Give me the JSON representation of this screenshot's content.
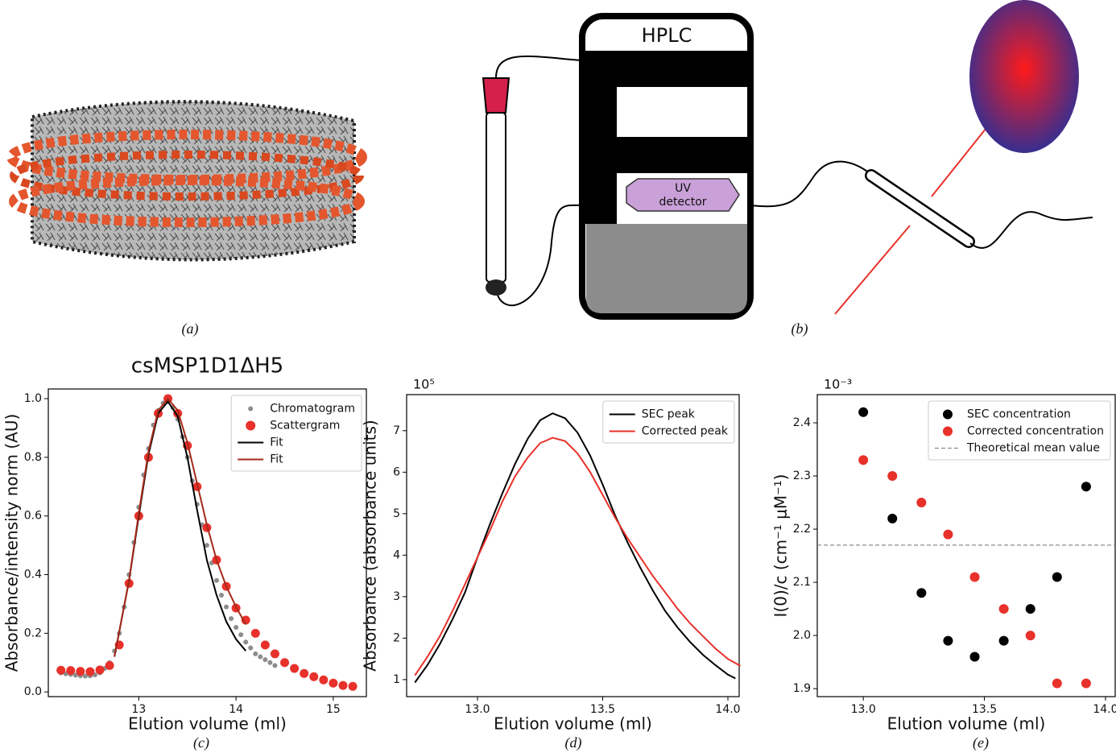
{
  "captions": [
    "(a)",
    "(b)",
    "(c)",
    "(d)",
    "(e)"
  ],
  "diagram": {
    "hplc": "HPLC",
    "detector": [
      "UV",
      "detector"
    ]
  },
  "chart_data": [
    {
      "type": "line",
      "title": "csMSP1D1ΔH5",
      "xlabel": "Elution volume (ml)",
      "ylabel": "Absorbance/intensity norm (AU)",
      "xlim": [
        12.07,
        15.34
      ],
      "ylim": [
        -0.016,
        1.033
      ],
      "xticks": [
        13,
        14,
        15
      ],
      "yticks": [
        {
          "value": 0,
          "label": "0.0"
        },
        0.2,
        0.4,
        0.6,
        0.8,
        {
          "value": 1,
          "label": "1.0"
        }
      ],
      "legend": "upper right",
      "series": [
        {
          "name": "Chromatogram",
          "color": "#8c8c8c",
          "style": "dots",
          "x": [
            12.2,
            12.25,
            12.3,
            12.35,
            12.4,
            12.45,
            12.5,
            12.55,
            12.6,
            12.65,
            12.7,
            12.75,
            12.8,
            12.85,
            12.9,
            12.95,
            13.0,
            13.05,
            13.1,
            13.15,
            13.2,
            13.25,
            13.3,
            13.35,
            13.4,
            13.45,
            13.5,
            13.55,
            13.6,
            13.65,
            13.7,
            13.75,
            13.8,
            13.85,
            13.9,
            13.95,
            14.0,
            14.05,
            14.1,
            14.15,
            14.2,
            14.25,
            14.3,
            14.35,
            14.4
          ],
          "values": [
            0.065,
            0.062,
            0.06,
            0.057,
            0.055,
            0.054,
            0.055,
            0.058,
            0.065,
            0.08,
            0.1,
            0.14,
            0.2,
            0.29,
            0.4,
            0.51,
            0.63,
            0.74,
            0.83,
            0.91,
            0.96,
            0.985,
            0.99,
            0.97,
            0.93,
            0.87,
            0.8,
            0.72,
            0.64,
            0.57,
            0.5,
            0.44,
            0.38,
            0.33,
            0.29,
            0.25,
            0.22,
            0.195,
            0.17,
            0.15,
            0.13,
            0.12,
            0.11,
            0.1,
            0.09
          ]
        },
        {
          "name": "Scattergram",
          "color": "#e8312a",
          "style": "points",
          "x": [
            12.2,
            12.3,
            12.4,
            12.5,
            12.6,
            12.7,
            12.8,
            12.9,
            13.0,
            13.1,
            13.2,
            13.3,
            13.4,
            13.5,
            13.6,
            13.7,
            13.8,
            13.9,
            14.0,
            14.1,
            14.2,
            14.3,
            14.4,
            14.5,
            14.6,
            14.7,
            14.8,
            14.9,
            15.0,
            15.1,
            15.2
          ],
          "values": [
            0.074,
            0.073,
            0.07,
            0.069,
            0.075,
            0.09,
            0.16,
            0.37,
            0.6,
            0.8,
            0.95,
            1.0,
            0.95,
            0.84,
            0.7,
            0.56,
            0.45,
            0.36,
            0.286,
            0.245,
            0.2,
            0.16,
            0.13,
            0.1,
            0.08,
            0.063,
            0.052,
            0.041,
            0.03,
            0.022,
            0.019
          ]
        },
        {
          "name": "Fit",
          "color": "#000000",
          "style": "line",
          "x": [
            12.75,
            12.9,
            13.0,
            13.1,
            13.2,
            13.3,
            13.4,
            13.5,
            13.6,
            13.7,
            13.8,
            13.9,
            14.0,
            14.1
          ],
          "values": [
            0.12,
            0.38,
            0.6,
            0.81,
            0.95,
            0.99,
            0.94,
            0.8,
            0.62,
            0.45,
            0.33,
            0.24,
            0.18,
            0.14
          ]
        },
        {
          "name": "Fit",
          "color": "#a52a1a",
          "style": "line",
          "x": [
            12.75,
            12.9,
            13.0,
            13.1,
            13.2,
            13.3,
            13.4,
            13.5,
            13.6,
            13.7,
            13.8,
            13.9,
            14.0,
            14.1
          ],
          "values": [
            0.12,
            0.38,
            0.61,
            0.82,
            0.96,
            1.0,
            0.96,
            0.85,
            0.71,
            0.57,
            0.45,
            0.36,
            0.29,
            0.23
          ]
        }
      ]
    },
    {
      "type": "line",
      "offset_label": "10⁵",
      "xlabel": "Elution volume (ml)",
      "ylabel": "Absorbance (absorbance units)",
      "xlim": [
        12.717,
        14.045
      ],
      "ylim": [
        0.59,
        7.87
      ],
      "xticks": [
        {
          "value": 13,
          "label": "13.0"
        },
        13.5,
        {
          "value": 14,
          "label": "14.0"
        }
      ],
      "yticks": [
        1,
        2,
        3,
        4,
        5,
        6,
        7
      ],
      "legend": "upper right",
      "series": [
        {
          "name": "SEC peak",
          "color": "#000000",
          "style": "line",
          "x": [
            12.75,
            12.8,
            12.85,
            12.9,
            12.95,
            13.0,
            13.05,
            13.1,
            13.15,
            13.2,
            13.25,
            13.3,
            13.35,
            13.4,
            13.45,
            13.5,
            13.55,
            13.6,
            13.65,
            13.7,
            13.75,
            13.8,
            13.85,
            13.9,
            13.95,
            14.0,
            14.03
          ],
          "values": [
            0.93,
            1.35,
            1.86,
            2.45,
            3.1,
            3.95,
            4.75,
            5.5,
            6.2,
            6.8,
            7.25,
            7.42,
            7.3,
            6.95,
            6.4,
            5.7,
            4.95,
            4.3,
            3.7,
            3.15,
            2.65,
            2.25,
            1.9,
            1.6,
            1.35,
            1.12,
            1.03
          ]
        },
        {
          "name": "Corrected peak",
          "color": "#e8312a",
          "style": "line",
          "x": [
            12.75,
            12.8,
            12.85,
            12.9,
            12.95,
            13.0,
            13.05,
            13.1,
            13.15,
            13.2,
            13.25,
            13.3,
            13.35,
            13.4,
            13.45,
            13.5,
            13.55,
            13.6,
            13.65,
            13.7,
            13.75,
            13.8,
            13.85,
            13.9,
            13.95,
            14.0,
            14.05
          ],
          "values": [
            1.1,
            1.55,
            2.05,
            2.65,
            3.3,
            3.95,
            4.6,
            5.3,
            5.9,
            6.35,
            6.7,
            6.83,
            6.75,
            6.45,
            6.0,
            5.45,
            4.9,
            4.4,
            3.95,
            3.5,
            3.1,
            2.7,
            2.35,
            2.05,
            1.75,
            1.5,
            1.33
          ]
        }
      ]
    },
    {
      "type": "scatter",
      "offset_label": "10⁻³",
      "xlabel": "Elution volume (ml)",
      "ylabel": "I(0)/c (cm⁻¹ μM⁻¹)",
      "xlim": [
        12.81,
        14.04
      ],
      "ylim": [
        1.885,
        2.453
      ],
      "xticks": [
        {
          "value": 13,
          "label": "13.0"
        },
        13.5,
        {
          "value": 14,
          "label": "14.0"
        }
      ],
      "yticks": [
        1.9,
        {
          "value": 2,
          "label": "2.0"
        },
        2.1,
        2.2,
        2.3,
        2.4
      ],
      "legend": "upper right",
      "series": [
        {
          "name": "SEC concentration",
          "color": "#000000",
          "x": [
            13.0,
            13.12,
            13.24,
            13.35,
            13.46,
            13.58,
            13.69,
            13.8,
            13.92
          ],
          "values": [
            2.42,
            2.22,
            2.08,
            1.99,
            1.96,
            1.99,
            2.05,
            2.11,
            2.28
          ]
        },
        {
          "name": "Corrected concentration",
          "color": "#e8312a",
          "x": [
            13.0,
            13.12,
            13.24,
            13.35,
            13.46,
            13.58,
            13.69,
            13.8,
            13.92
          ],
          "values": [
            2.33,
            2.3,
            2.25,
            2.19,
            2.11,
            2.05,
            2.0,
            1.91,
            1.91
          ]
        }
      ],
      "hline": {
        "name": "Theoretical mean value",
        "value": 2.17,
        "color": "#8c8c8c"
      }
    }
  ]
}
